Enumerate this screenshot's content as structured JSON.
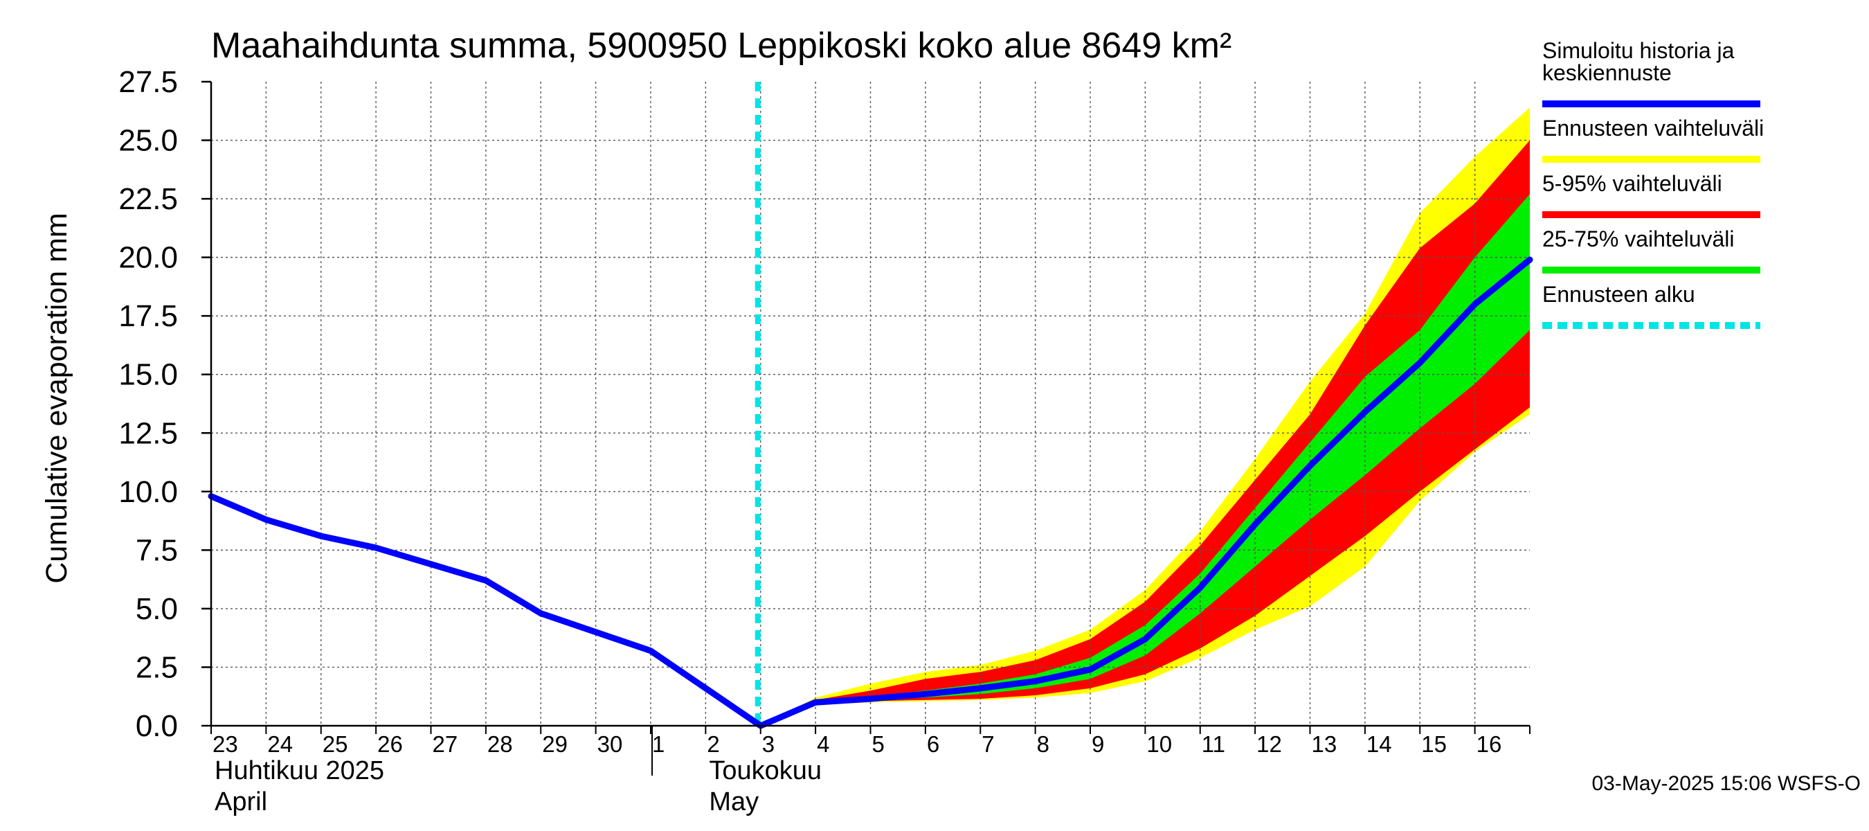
{
  "chart_data": {
    "type": "area",
    "title": "Maahaihdunta summa, 5900950 Leppikoski koko alue 8649 km²",
    "ylabel": "Cumulative evaporation   mm",
    "ylim": [
      0,
      27.5
    ],
    "yticks": [
      "0.0",
      "2.5",
      "5.0",
      "7.5",
      "10.0",
      "12.5",
      "15.0",
      "17.5",
      "20.0",
      "22.5",
      "25.0",
      "27.5"
    ],
    "x_day_range": [
      0,
      24
    ],
    "days": [
      "23",
      "24",
      "25",
      "26",
      "27",
      "28",
      "29",
      "30",
      "1",
      "2",
      "3",
      "4",
      "5",
      "6",
      "7",
      "8",
      "9",
      "10",
      "11",
      "12",
      "13",
      "14",
      "15",
      "16"
    ],
    "month_labels": [
      {
        "lines": [
          "Huhtikuu  2025",
          "April"
        ],
        "day": 0
      },
      {
        "lines": [
          "Toukokuu",
          "May"
        ],
        "day": 9
      }
    ],
    "month_divider_day": 8,
    "forecast_start_day": 10,
    "series": [
      {
        "name": "Simuloitu historia ja keskiennuste",
        "color": "#0000ff",
        "x": [
          0,
          1,
          2,
          3,
          4,
          5,
          6,
          7,
          8,
          9,
          10,
          11,
          12,
          13,
          14,
          15,
          16,
          17,
          18,
          19,
          20,
          21,
          22,
          23,
          24
        ],
        "values": [
          9.8,
          8.8,
          8.1,
          7.6,
          6.9,
          6.2,
          4.8,
          4.0,
          3.2,
          1.6,
          0.0,
          1.0,
          1.15,
          1.35,
          1.6,
          1.9,
          2.4,
          3.7,
          5.9,
          8.6,
          11.1,
          13.4,
          15.5,
          18.0,
          19.9
        ]
      }
    ],
    "bands": [
      {
        "name": "Ennusteen vaihteluväli",
        "color": "#ffff00",
        "x": [
          10,
          11,
          12,
          13,
          14,
          15,
          16,
          17,
          18,
          19,
          20,
          21,
          22,
          23,
          24
        ],
        "upper": [
          0.0,
          1.2,
          1.8,
          2.3,
          2.6,
          3.2,
          4.1,
          5.8,
          8.3,
          11.4,
          14.7,
          17.6,
          21.9,
          24.3,
          26.4
        ],
        "lower": [
          0.0,
          0.9,
          1.0,
          1.05,
          1.1,
          1.2,
          1.4,
          1.9,
          2.9,
          4.1,
          5.1,
          6.8,
          9.6,
          11.7,
          13.3
        ]
      },
      {
        "name": "5-95% vaihteluväli",
        "color": "#ff0000",
        "x": [
          10,
          11,
          12,
          13,
          14,
          15,
          16,
          17,
          18,
          19,
          20,
          21,
          22,
          23,
          24
        ],
        "upper": [
          0.0,
          1.1,
          1.5,
          2.0,
          2.3,
          2.8,
          3.7,
          5.3,
          7.7,
          10.5,
          13.3,
          17.1,
          20.4,
          22.3,
          25.0
        ],
        "lower": [
          0.0,
          0.95,
          1.05,
          1.1,
          1.15,
          1.3,
          1.6,
          2.2,
          3.3,
          4.7,
          6.4,
          8.1,
          10.0,
          11.8,
          13.6
        ]
      },
      {
        "name": "25-75% vaihteluväli",
        "color": "#00ee00",
        "x": [
          10,
          11,
          12,
          13,
          14,
          15,
          16,
          17,
          18,
          19,
          20,
          21,
          22,
          23,
          24
        ],
        "upper": [
          0.0,
          1.05,
          1.25,
          1.5,
          1.8,
          2.2,
          2.9,
          4.3,
          6.5,
          9.3,
          12.1,
          14.9,
          16.9,
          20.0,
          22.7
        ],
        "lower": [
          0.0,
          1.0,
          1.1,
          1.2,
          1.35,
          1.6,
          2.0,
          3.0,
          4.8,
          6.8,
          8.8,
          10.7,
          12.7,
          14.6,
          16.9
        ]
      }
    ],
    "legend": {
      "placement": "right",
      "entries": [
        {
          "lines": [
            "Simuloitu historia ja",
            "keskiennuste"
          ],
          "color": "#0000ff",
          "style": "solid"
        },
        {
          "lines": [
            "Ennusteen vaihteluväli"
          ],
          "color": "#ffff00",
          "style": "solid"
        },
        {
          "lines": [
            "5-95% vaihteluväli"
          ],
          "color": "#ff0000",
          "style": "solid"
        },
        {
          "lines": [
            "25-75% vaihteluväli"
          ],
          "color": "#00ee00",
          "style": "solid"
        },
        {
          "lines": [
            "Ennusteen alku"
          ],
          "color": "#00e5e5",
          "style": "dashed"
        }
      ]
    },
    "footer": "03-May-2025 15:06 WSFS-O"
  }
}
